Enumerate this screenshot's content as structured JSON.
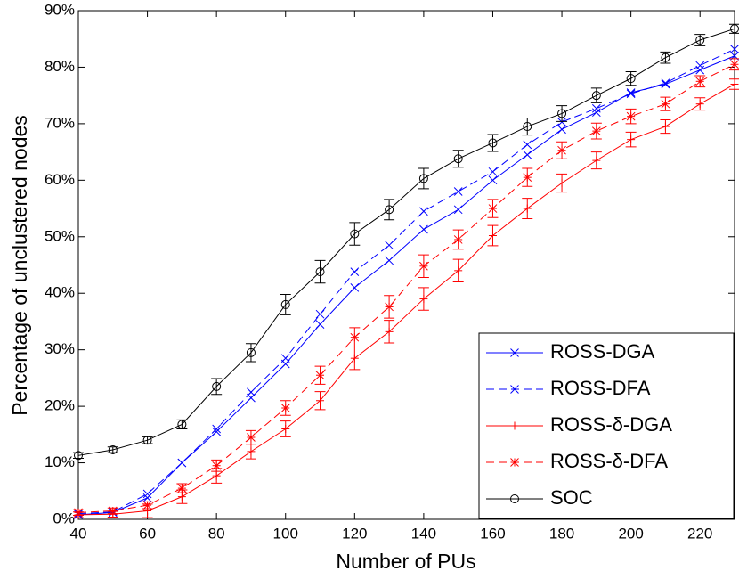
{
  "chart_data": {
    "type": "line",
    "x_label": "Number of PUs",
    "y_label": "Percentage of unclustered nodes",
    "x": [
      40,
      50,
      60,
      70,
      80,
      90,
      100,
      110,
      120,
      130,
      140,
      150,
      160,
      170,
      180,
      190,
      200,
      210,
      220,
      230
    ],
    "xlim": [
      40,
      230
    ],
    "xticks": [
      40,
      60,
      80,
      100,
      120,
      140,
      160,
      180,
      200,
      220
    ],
    "ylim": [
      0,
      90
    ],
    "yticks": [
      {
        "value": 0,
        "label": "0%"
      },
      {
        "value": 10,
        "label": "10%"
      },
      {
        "value": 20,
        "label": "20%"
      },
      {
        "value": 30,
        "label": "30%"
      },
      {
        "value": 40,
        "label": "40%"
      },
      {
        "value": 50,
        "label": "50%"
      },
      {
        "value": 60,
        "label": "60%"
      },
      {
        "value": 70,
        "label": "70%"
      },
      {
        "value": 80,
        "label": "80%"
      },
      {
        "value": 90,
        "label": "90%"
      }
    ],
    "legend_position": "lower right",
    "series": [
      {
        "name": "ROSS-DGA",
        "color": "#0000ff",
        "dash": "solid",
        "marker": "x",
        "values": [
          0.8,
          1.2,
          3.8,
          10,
          15.5,
          21.5,
          27.5,
          34.5,
          41,
          45.8,
          51.3,
          54.8,
          60,
          64.5,
          69,
          72,
          75.5,
          77,
          79.5,
          82
        ]
      },
      {
        "name": "ROSS-DFA",
        "color": "#0000ff",
        "dash": "dashed",
        "marker": "x",
        "values": [
          1,
          1.3,
          4.5,
          10,
          16,
          22.5,
          28.5,
          36.3,
          43.8,
          48.5,
          54.5,
          58,
          61.5,
          66.3,
          70.3,
          72.7,
          75.3,
          77.2,
          80.3,
          83.2
        ]
      },
      {
        "name": "ROSS-δ-DGA",
        "color": "#ff0000",
        "dash": "solid",
        "marker": "plus",
        "values": [
          0.8,
          0.9,
          1.5,
          4,
          7.7,
          12,
          16,
          21,
          28.5,
          33.2,
          39,
          44,
          50.2,
          55,
          59.5,
          63.5,
          67.2,
          69.5,
          73.5,
          77
        ],
        "errors": [
          0.5,
          0.5,
          1.2,
          1.2,
          1.3,
          1.3,
          1.4,
          1.6,
          2,
          2,
          2,
          2,
          1.8,
          1.8,
          1.6,
          1.5,
          1.3,
          1.2,
          1.1,
          0.9
        ]
      },
      {
        "name": "ROSS-δ-DFA",
        "color": "#ff0000",
        "dash": "dashed",
        "marker": "star",
        "values": [
          1.2,
          1.5,
          2.5,
          5.5,
          9.5,
          14.5,
          19.7,
          25.5,
          32.2,
          37.6,
          44.8,
          49.5,
          55,
          60.5,
          65.3,
          68.7,
          71.3,
          73.5,
          77.5,
          80.5
        ],
        "errors": [
          0.5,
          0.5,
          0.6,
          0.8,
          1,
          1.2,
          1.3,
          1.6,
          1.7,
          2,
          2,
          1.7,
          1.6,
          1.6,
          1.5,
          1.4,
          1.3,
          1.2,
          1,
          1
        ]
      },
      {
        "name": "SOC",
        "color": "#000000",
        "dash": "solid",
        "marker": "circle",
        "values": [
          11.3,
          12.3,
          14,
          16.8,
          23.5,
          29.5,
          38,
          43.8,
          50.5,
          54.8,
          60.3,
          63.8,
          66.6,
          69.5,
          71.8,
          75,
          78,
          81.7,
          84.8,
          86.8
        ],
        "errors": [
          0.5,
          0.5,
          0.6,
          0.8,
          1.4,
          1.6,
          1.8,
          2,
          2,
          1.8,
          1.8,
          1.5,
          1.5,
          1.5,
          1.4,
          1.3,
          1.2,
          1,
          1,
          0.8
        ]
      }
    ]
  }
}
